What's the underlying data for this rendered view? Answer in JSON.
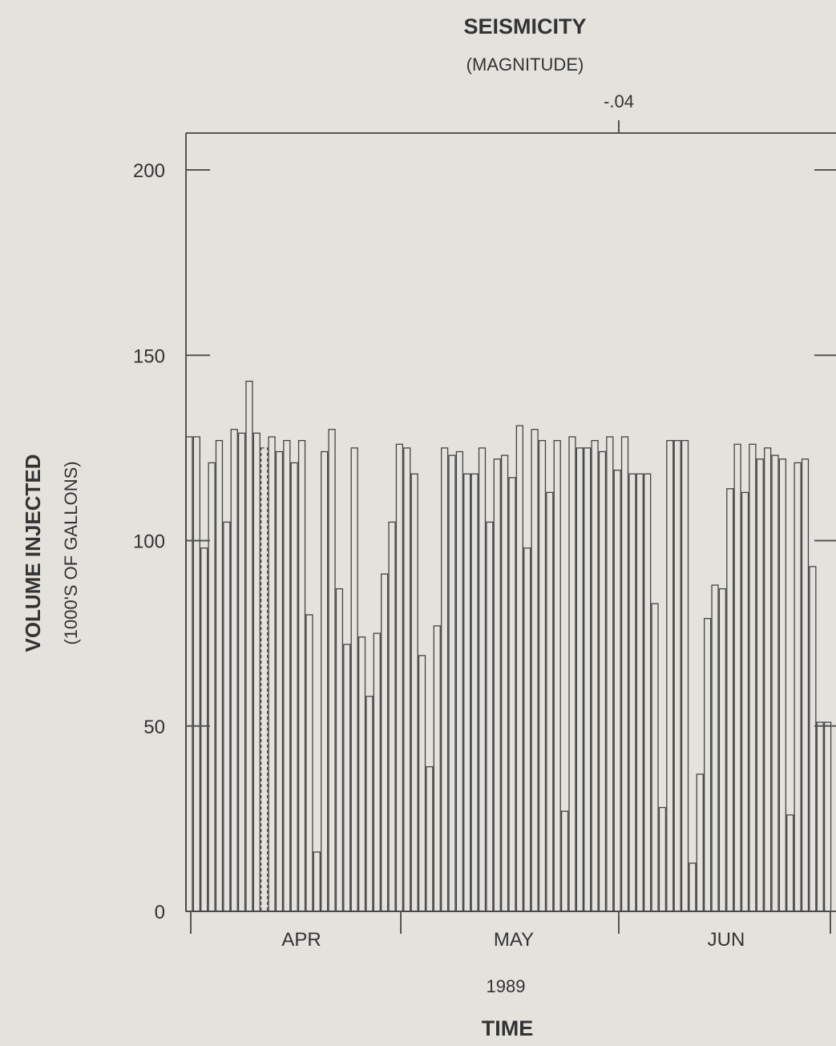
{
  "chart_data": {
    "type": "bar",
    "title": "SEISMICITY",
    "subtitle": "(MAGNITUDE)",
    "top_annotation": "-.04",
    "ylabel": "VOLUME INJECTED",
    "ylabel_sub": "(1000'S OF GALLONS)",
    "xlabel": "TIME",
    "year_label": "1989",
    "ylim": [
      0,
      200
    ],
    "y_ticks": [
      "0",
      "50",
      "100",
      "150",
      "200"
    ],
    "month_labels": [
      "APR",
      "MAY",
      "JUN"
    ],
    "grid": false,
    "dashed_bar_index": 10,
    "values": [
      128,
      128,
      98,
      121,
      127,
      105,
      130,
      129,
      143,
      129,
      125,
      128,
      124,
      127,
      121,
      127,
      80,
      16,
      124,
      130,
      87,
      72,
      125,
      74,
      58,
      75,
      91,
      105,
      126,
      125,
      118,
      69,
      39,
      77,
      125,
      123,
      124,
      118,
      118,
      125,
      105,
      122,
      123,
      117,
      131,
      98,
      130,
      127,
      113,
      127,
      27,
      128,
      125,
      125,
      127,
      124,
      128,
      119,
      128,
      118,
      118,
      118,
      83,
      28,
      127,
      127,
      127,
      13,
      37,
      79,
      88,
      87,
      114,
      126,
      113,
      126,
      122,
      125,
      123,
      122,
      26,
      121,
      122,
      93,
      51,
      51
    ]
  }
}
